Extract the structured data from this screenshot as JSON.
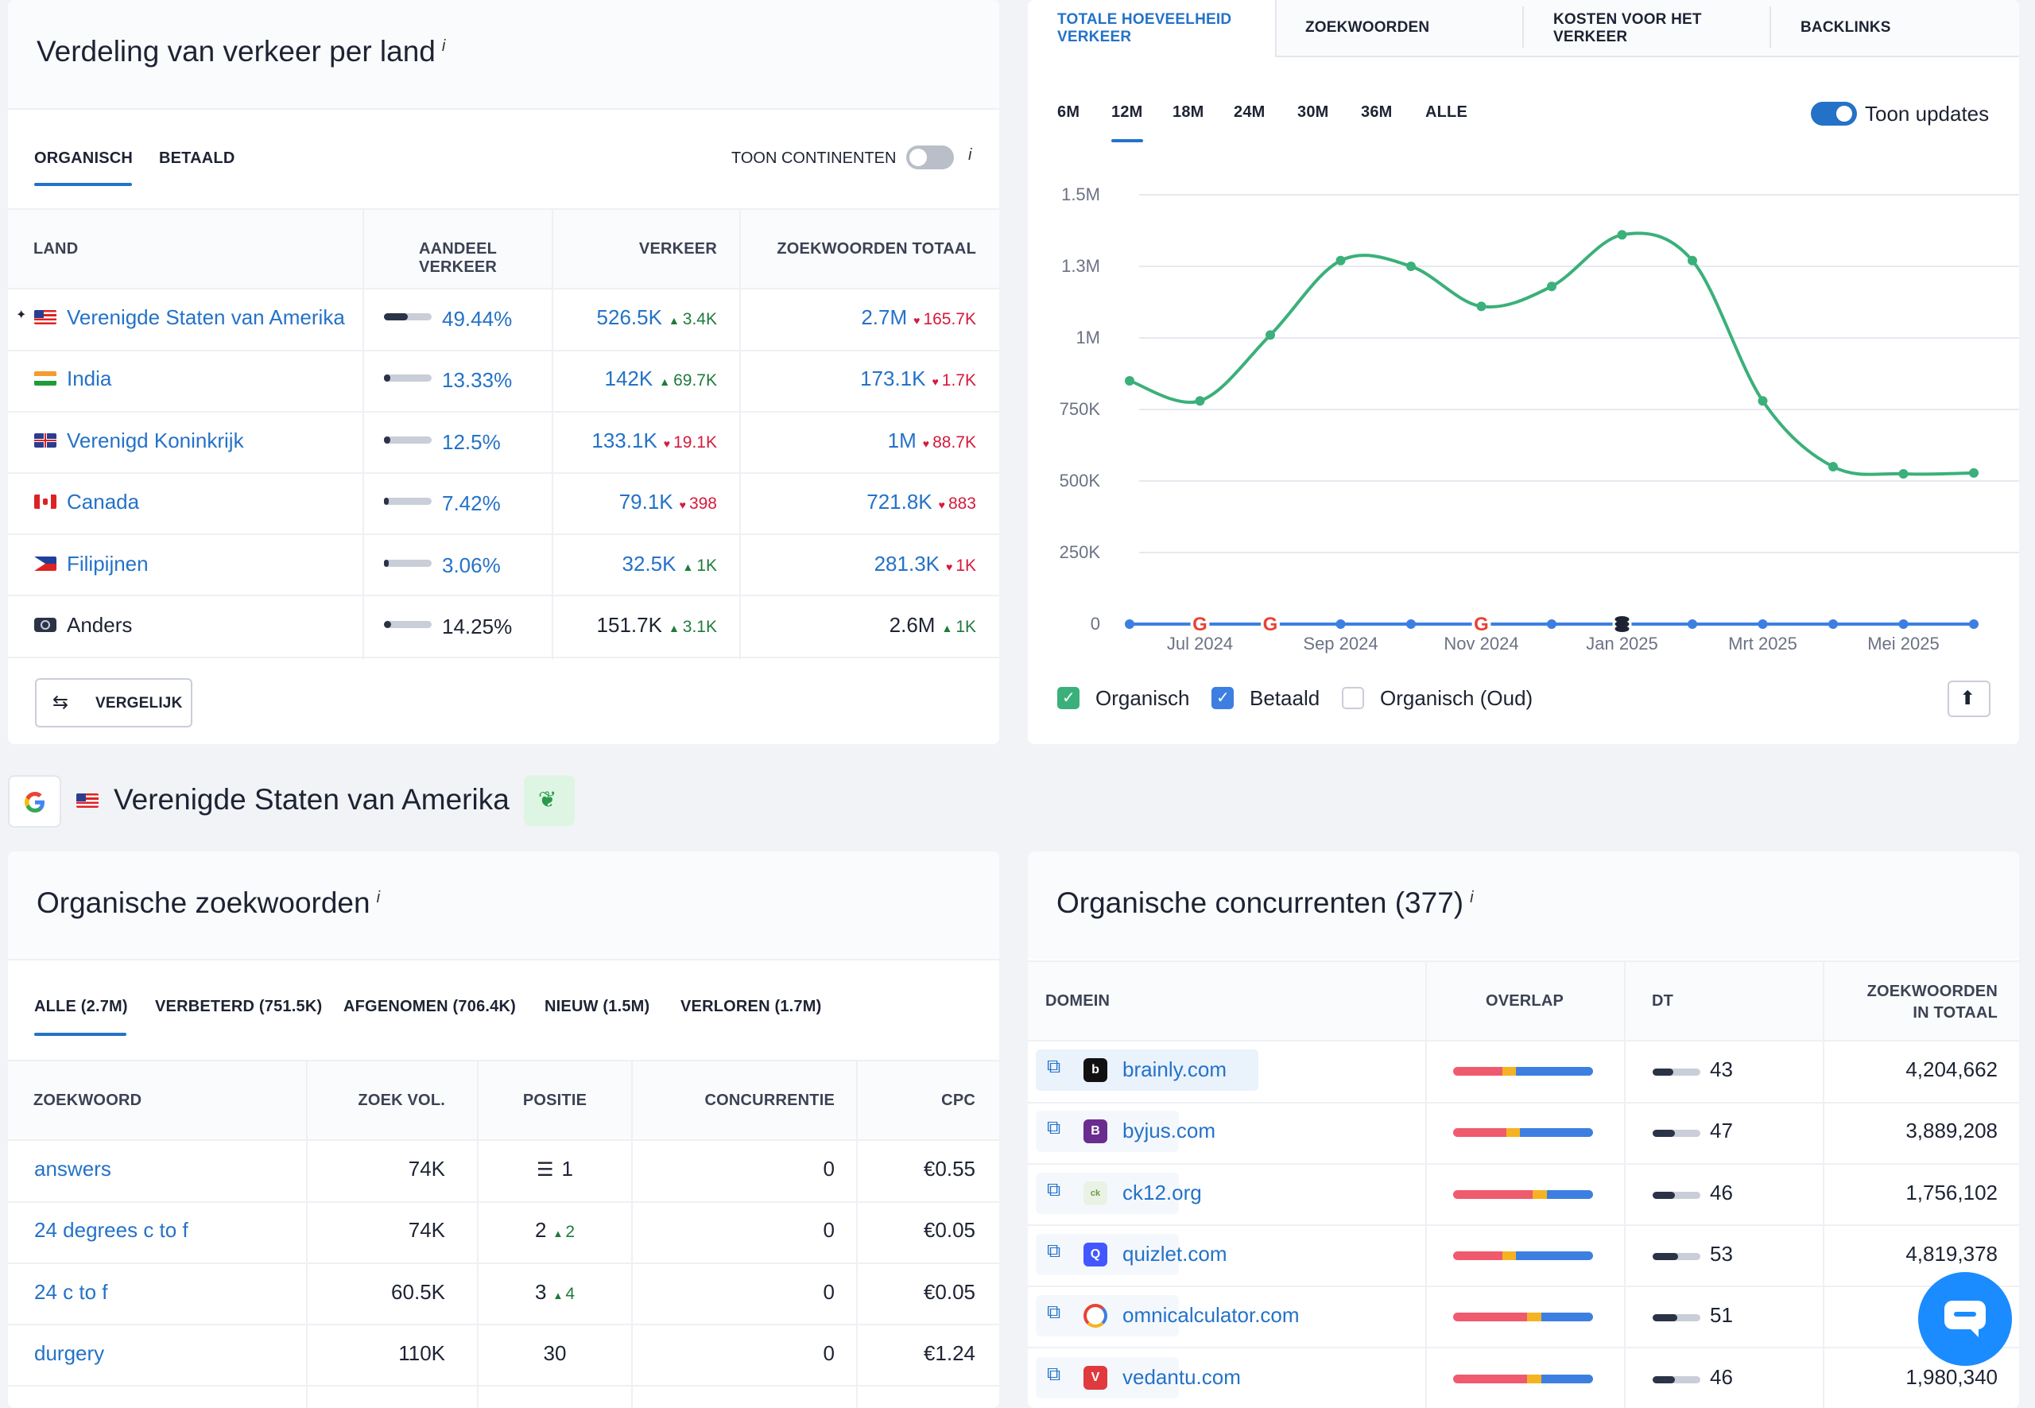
{
  "traffic_by_country": {
    "title": "Verdeling van verkeer per land",
    "info": "i",
    "tabs": [
      "ORGANISCH",
      "BETAALD"
    ],
    "toggle_label": "TOON CONTINENTEN",
    "columns": [
      "LAND",
      "AANDEEL VERKEER",
      "VERKEER",
      "ZOEKWOORDEN TOTAAL"
    ],
    "rows": [
      {
        "country": "Verenigde Staten van Amerika",
        "share": "49.44%",
        "share_fraction": 0.4944,
        "traffic": "526.5K",
        "traffic_change": "3.4K",
        "traffic_dir": "up",
        "keywords": "2.7M",
        "kw_change": "165.7K",
        "kw_dir": "down",
        "pinned": true,
        "link": true
      },
      {
        "country": "India",
        "share": "13.33%",
        "share_fraction": 0.1333,
        "traffic": "142K",
        "traffic_change": "69.7K",
        "traffic_dir": "up",
        "keywords": "173.1K",
        "kw_change": "1.7K",
        "kw_dir": "down",
        "link": true
      },
      {
        "country": "Verenigd Koninkrijk",
        "share": "12.5%",
        "share_fraction": 0.125,
        "traffic": "133.1K",
        "traffic_change": "19.1K",
        "traffic_dir": "down",
        "keywords": "1M",
        "kw_change": "88.7K",
        "kw_dir": "down",
        "link": true
      },
      {
        "country": "Canada",
        "share": "7.42%",
        "share_fraction": 0.0742,
        "traffic": "79.1K",
        "traffic_change": "398",
        "traffic_dir": "down",
        "keywords": "721.8K",
        "kw_change": "883",
        "kw_dir": "down",
        "link": true
      },
      {
        "country": "Filipijnen",
        "share": "3.06%",
        "share_fraction": 0.0306,
        "traffic": "32.5K",
        "traffic_change": "1K",
        "traffic_dir": "up",
        "keywords": "281.3K",
        "kw_change": "1K",
        "kw_dir": "down",
        "link": true
      },
      {
        "country": "Anders",
        "share": "14.25%",
        "share_fraction": 0.1425,
        "traffic": "151.7K",
        "traffic_change": "3.1K",
        "traffic_dir": "up",
        "keywords": "2.6M",
        "kw_change": "1K",
        "kw_dir": "up",
        "link": false
      }
    ],
    "compare_button": "VERGELIJK"
  },
  "traffic_chart_panel": {
    "tabs": [
      "TOTALE HOEVEELHEID VERKEER",
      "ZOEKWOORDEN",
      "KOSTEN VOOR HET VERKEER",
      "BACKLINKS"
    ],
    "ranges": [
      "6M",
      "12M",
      "18M",
      "24M",
      "30M",
      "36M",
      "ALLE"
    ],
    "active_range": "12M",
    "toggle_label": "Toon updates",
    "legend": [
      "Organisch",
      "Betaald",
      "Organisch (Oud)"
    ]
  },
  "chart_data": {
    "type": "line",
    "title": "",
    "xlabel": "",
    "ylabel": "",
    "ylim": [
      0,
      1500000
    ],
    "y_ticks": [
      "0",
      "250K",
      "500K",
      "750K",
      "1M",
      "1.3M",
      "1.5M"
    ],
    "y_tick_values": [
      0,
      250000,
      500000,
      750000,
      1000000,
      1250000,
      1500000
    ],
    "x": [
      "Jun 2024",
      "Jul 2024",
      "Aug 2024",
      "Sep 2024",
      "Okt 2024",
      "Nov 2024",
      "Dec 2024",
      "Jan 2025",
      "Feb 2025",
      "Mrt 2025",
      "Apr 2025",
      "Mei 2025",
      "Jun 2025"
    ],
    "x_tick_labels": [
      "Jul 2024",
      "Sep 2024",
      "Nov 2024",
      "Jan 2025",
      "Mrt 2025",
      "Mei 2025"
    ],
    "series": [
      {
        "name": "Organisch",
        "color": "#3bb07a",
        "values": [
          850000,
          780000,
          1010000,
          1270000,
          1250000,
          1110000,
          1180000,
          1360000,
          1270000,
          780000,
          550000,
          525000,
          528000
        ]
      },
      {
        "name": "Betaald",
        "color": "#3d7fe0",
        "values": [
          0,
          0,
          0,
          0,
          0,
          0,
          0,
          0,
          0,
          0,
          0,
          0,
          0
        ]
      }
    ],
    "grid": true,
    "update_markers": [
      "Jul 2024",
      "Aug 2024",
      "Nov 2024",
      "Jan 2025"
    ]
  },
  "location_bar": {
    "country": "Verenigde Staten van Amerika"
  },
  "organic_keywords": {
    "title": "Organische zoekwoorden",
    "info": "i",
    "tabs": [
      "ALLE (2.7M)",
      "VERBETERD (751.5K)",
      "AFGENOMEN (706.4K)",
      "NIEUW (1.5M)",
      "VERLOREN (1.7M)"
    ],
    "columns": [
      "ZOEKWOORD",
      "ZOEK VOL.",
      "POSITIE",
      "CONCURRENTIE",
      "CPC"
    ],
    "rows": [
      {
        "keyword": "answers",
        "volume": "74K",
        "position": "1",
        "pos_change": "",
        "competition": "0",
        "cpc": "€0.55",
        "serp_icon": true
      },
      {
        "keyword": "24 degrees c to f",
        "volume": "74K",
        "position": "2",
        "pos_change": "2",
        "competition": "0",
        "cpc": "€0.05"
      },
      {
        "keyword": "24 c to f",
        "volume": "60.5K",
        "position": "3",
        "pos_change": "4",
        "competition": "0",
        "cpc": "€0.05"
      },
      {
        "keyword": "durgery",
        "volume": "110K",
        "position": "30",
        "pos_change": "",
        "competition": "0",
        "cpc": "€1.24"
      }
    ]
  },
  "organic_competitors": {
    "title": "Organische concurrenten (377)",
    "info": "i",
    "columns": [
      "DOMEIN",
      "OVERLAP",
      "DT",
      "ZOEKWOORDEN IN TOTAAL"
    ],
    "rows": [
      {
        "domain": "brainly.com",
        "dt": "43",
        "dt_fraction": 0.43,
        "keywords": "4,204,662",
        "fav_color": "#111111",
        "fav_letter": "b",
        "overlap": [
          0.35,
          0.1,
          0.55
        ],
        "highlight": true
      },
      {
        "domain": "byjus.com",
        "dt": "47",
        "dt_fraction": 0.47,
        "keywords": "3,889,208",
        "fav_color": "#6b2c8f",
        "fav_letter": "B",
        "overlap": [
          0.38,
          0.1,
          0.52
        ],
        "highlight": false
      },
      {
        "domain": "ck12.org",
        "dt": "46",
        "dt_fraction": 0.46,
        "keywords": "1,756,102",
        "fav_color": "#eaf2e6",
        "fav_letter": "ck",
        "overlap": [
          0.57,
          0.1,
          0.33
        ],
        "highlight": false
      },
      {
        "domain": "quizlet.com",
        "dt": "53",
        "dt_fraction": 0.53,
        "keywords": "4,819,378",
        "fav_color": "#4257ff",
        "fav_letter": "Q",
        "overlap": [
          0.35,
          0.1,
          0.55
        ],
        "highlight": false
      },
      {
        "domain": "omnicalculator.com",
        "dt": "51",
        "dt_fraction": 0.51,
        "keywords": "1,9",
        "fav_color": "#ffffff",
        "fav_letter": "",
        "overlap": [
          0.53,
          0.1,
          0.37
        ],
        "highlight": false
      },
      {
        "domain": "vedantu.com",
        "dt": "46",
        "dt_fraction": 0.46,
        "keywords": "1,980,340",
        "fav_color": "#e0393e",
        "fav_letter": "V",
        "overlap": [
          0.53,
          0.1,
          0.37
        ],
        "highlight": false
      }
    ]
  },
  "colors": {
    "link": "#2472c8",
    "up": "#1f7a3d",
    "down": "#d61a3c",
    "organic": "#3bb07a",
    "paid": "#3d7fe0",
    "overlap_a": "#f05a6e",
    "overlap_b": "#f5b323",
    "overlap_c": "#3d7fe0",
    "chat_bubble": "#1a8cff"
  }
}
